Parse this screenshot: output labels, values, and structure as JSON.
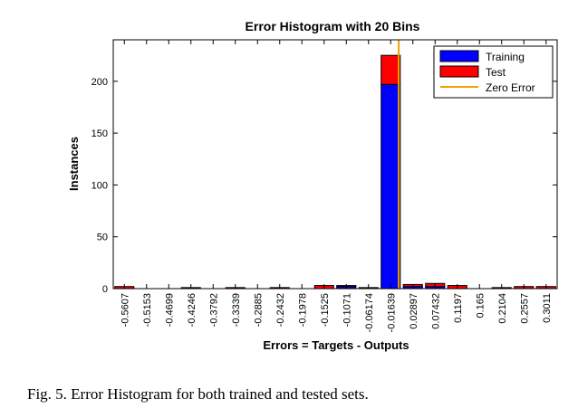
{
  "caption": "Fig. 5.  Error Histogram for both trained and tested sets.",
  "chart_data": {
    "type": "bar",
    "stacked": true,
    "title": "Error Histogram with 20 Bins",
    "xlabel": "Errors = Targets - Outputs",
    "ylabel": "Instances",
    "ylim": [
      0,
      240
    ],
    "yticks": [
      0,
      50,
      100,
      150,
      200
    ],
    "categories": [
      "-0.5607",
      "-0.5153",
      "-0.4699",
      "-0.4246",
      "-0.3792",
      "-0.3339",
      "-0.2885",
      "-0.2432",
      "-0.1978",
      "-0.1525",
      "-0.1071",
      "-0.06174",
      "-0.01639",
      "0.02897",
      "0.07432",
      "0.1197",
      "0.165",
      "0.2104",
      "0.2557",
      "0.3011"
    ],
    "series": [
      {
        "name": "Training",
        "color": "#0000ff",
        "values": [
          0,
          0,
          0,
          0,
          0,
          0,
          0,
          0,
          0,
          0,
          2,
          0,
          197,
          2,
          2,
          0,
          0,
          0,
          0,
          0
        ]
      },
      {
        "name": "Test",
        "color": "#ff0000",
        "values": [
          2,
          0,
          0,
          1,
          0,
          1,
          0,
          1,
          0,
          3,
          1,
          1,
          28,
          2,
          3,
          3,
          0,
          1,
          2,
          2
        ]
      }
    ],
    "zero_error": {
      "name": "Zero Error",
      "color": "#f0a000",
      "x": 0
    },
    "legend": "top-right"
  }
}
